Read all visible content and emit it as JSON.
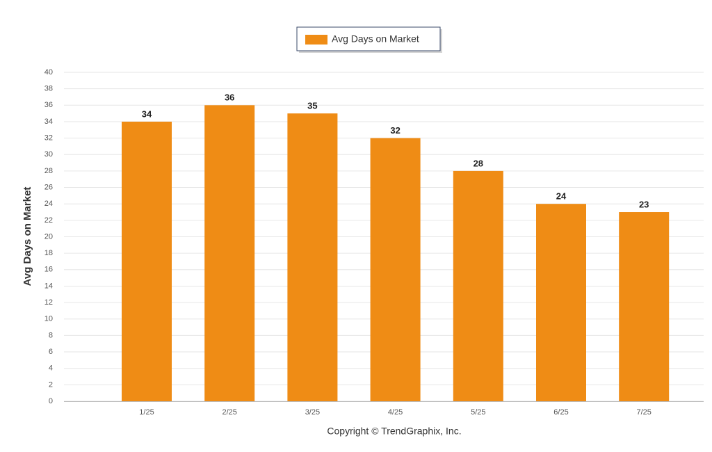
{
  "chart_data": {
    "type": "bar",
    "categories": [
      "1/25",
      "2/25",
      "3/25",
      "4/25",
      "5/25",
      "6/25",
      "7/25"
    ],
    "series": [
      {
        "name": "Avg Days on Market",
        "color": "#ef8c15",
        "values": [
          34,
          36,
          35,
          32,
          28,
          24,
          23
        ]
      }
    ],
    "y_label": "Avg Days on Market",
    "ylim": [
      0,
      40
    ],
    "yticks": [
      0,
      2,
      4,
      6,
      8,
      10,
      12,
      14,
      16,
      18,
      20,
      22,
      24,
      26,
      28,
      30,
      32,
      34,
      36,
      38,
      40
    ],
    "grid": true,
    "legend": "top",
    "caption": "Copyright © TrendGraphix, Inc."
  }
}
